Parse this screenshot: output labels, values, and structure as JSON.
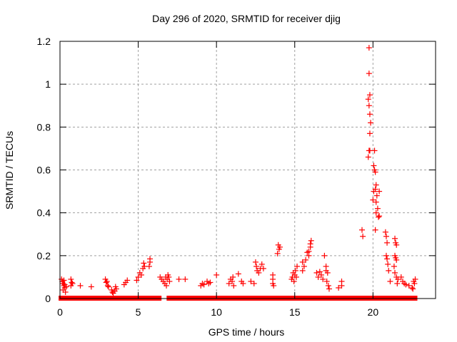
{
  "chart_data": {
    "type": "scatter",
    "title": "Day 296 of 2020, SRMTID for receiver djig",
    "xlabel": "GPS time / hours",
    "ylabel": "SRMTID / TECUs",
    "xlim": [
      0,
      24
    ],
    "ylim": [
      0,
      1.2
    ],
    "xticks": [
      0,
      5,
      10,
      15,
      20
    ],
    "xtick_labels": [
      "0",
      "5",
      "10",
      "15",
      "20"
    ],
    "yticks": [
      0,
      0.2,
      0.4,
      0.6,
      0.8,
      1.0,
      1.2
    ],
    "ytick_labels": [
      "0",
      "0.2",
      "0.4",
      "0.6",
      "0.8",
      "1",
      "1.2"
    ],
    "grid": true,
    "marker": "plus",
    "series": [
      {
        "name": "SRMTID",
        "color": "#ff0000",
        "points": [
          [
            0.1,
            0.09
          ],
          [
            0.15,
            0.08
          ],
          [
            0.2,
            0.07
          ],
          [
            0.25,
            0.06
          ],
          [
            0.3,
            0.05
          ],
          [
            0.2,
            0.04
          ],
          [
            0.35,
            0.03
          ],
          [
            0.3,
            0.065
          ],
          [
            0.4,
            0.055
          ],
          [
            0.25,
            0.085
          ],
          [
            0.7,
            0.09
          ],
          [
            0.75,
            0.075
          ],
          [
            0.7,
            0.06
          ],
          [
            0.8,
            0.07
          ],
          [
            1.3,
            0.06
          ],
          [
            2.0,
            0.055
          ],
          [
            2.9,
            0.09
          ],
          [
            3.0,
            0.08
          ],
          [
            2.95,
            0.075
          ],
          [
            3.05,
            0.06
          ],
          [
            3.1,
            0.055
          ],
          [
            3.3,
            0.04
          ],
          [
            3.35,
            0.03
          ],
          [
            3.4,
            0.025
          ],
          [
            3.5,
            0.035
          ],
          [
            3.6,
            0.045
          ],
          [
            3.55,
            0.055
          ],
          [
            4.1,
            0.065
          ],
          [
            4.2,
            0.075
          ],
          [
            4.3,
            0.085
          ],
          [
            4.9,
            0.085
          ],
          [
            5.0,
            0.1
          ],
          [
            5.1,
            0.12
          ],
          [
            5.2,
            0.11
          ],
          [
            5.3,
            0.14
          ],
          [
            5.35,
            0.165
          ],
          [
            5.4,
            0.15
          ],
          [
            5.7,
            0.15
          ],
          [
            5.75,
            0.17
          ],
          [
            5.75,
            0.185
          ],
          [
            6.4,
            0.1
          ],
          [
            6.5,
            0.09
          ],
          [
            6.6,
            0.08
          ],
          [
            6.7,
            0.07
          ],
          [
            6.75,
            0.1
          ],
          [
            6.8,
            0.06
          ],
          [
            6.85,
            0.09
          ],
          [
            6.9,
            0.11
          ],
          [
            7.0,
            0.08
          ],
          [
            6.95,
            0.1
          ],
          [
            7.6,
            0.09
          ],
          [
            8.0,
            0.09
          ],
          [
            9.0,
            0.06
          ],
          [
            9.1,
            0.07
          ],
          [
            9.2,
            0.065
          ],
          [
            9.4,
            0.08
          ],
          [
            9.5,
            0.07
          ],
          [
            9.6,
            0.075
          ],
          [
            10.0,
            0.11
          ],
          [
            10.8,
            0.07
          ],
          [
            10.9,
            0.09
          ],
          [
            11.0,
            0.08
          ],
          [
            11.05,
            0.1
          ],
          [
            11.1,
            0.06
          ],
          [
            11.4,
            0.115
          ],
          [
            11.6,
            0.08
          ],
          [
            11.7,
            0.07
          ],
          [
            12.2,
            0.08
          ],
          [
            12.4,
            0.07
          ],
          [
            12.5,
            0.17
          ],
          [
            12.55,
            0.15
          ],
          [
            12.6,
            0.13
          ],
          [
            12.7,
            0.12
          ],
          [
            12.8,
            0.14
          ],
          [
            12.9,
            0.16
          ],
          [
            13.0,
            0.14
          ],
          [
            13.6,
            0.11
          ],
          [
            13.6,
            0.09
          ],
          [
            13.6,
            0.07
          ],
          [
            13.65,
            0.06
          ],
          [
            13.9,
            0.21
          ],
          [
            13.95,
            0.25
          ],
          [
            14.0,
            0.23
          ],
          [
            14.05,
            0.24
          ],
          [
            14.8,
            0.09
          ],
          [
            14.85,
            0.1
          ],
          [
            14.9,
            0.12
          ],
          [
            14.95,
            0.08
          ],
          [
            15.0,
            0.11
          ],
          [
            15.05,
            0.13
          ],
          [
            15.1,
            0.1
          ],
          [
            15.15,
            0.15
          ],
          [
            15.5,
            0.17
          ],
          [
            15.5,
            0.13
          ],
          [
            15.6,
            0.15
          ],
          [
            15.7,
            0.18
          ],
          [
            15.8,
            0.215
          ],
          [
            15.9,
            0.22
          ],
          [
            16.0,
            0.24
          ],
          [
            16.05,
            0.27
          ],
          [
            16.0,
            0.255
          ],
          [
            15.9,
            0.2
          ],
          [
            16.4,
            0.12
          ],
          [
            16.5,
            0.1
          ],
          [
            16.6,
            0.125
          ],
          [
            16.7,
            0.11
          ],
          [
            16.8,
            0.09
          ],
          [
            16.9,
            0.2
          ],
          [
            17.0,
            0.15
          ],
          [
            17.0,
            0.13
          ],
          [
            17.05,
            0.08
          ],
          [
            17.1,
            0.12
          ],
          [
            17.15,
            0.06
          ],
          [
            17.2,
            0.045
          ],
          [
            17.8,
            0.05
          ],
          [
            18.0,
            0.06
          ],
          [
            18.0,
            0.08
          ],
          [
            19.3,
            0.32
          ],
          [
            19.35,
            0.29
          ],
          [
            19.75,
            1.17
          ],
          [
            19.75,
            1.05
          ],
          [
            19.8,
            0.95
          ],
          [
            19.7,
            0.93
          ],
          [
            19.75,
            0.9
          ],
          [
            19.8,
            0.86
          ],
          [
            19.85,
            0.82
          ],
          [
            19.8,
            0.77
          ],
          [
            19.75,
            0.69
          ],
          [
            19.7,
            0.66
          ],
          [
            19.8,
            0.69
          ],
          [
            20.1,
            0.69
          ],
          [
            20.05,
            0.62
          ],
          [
            20.1,
            0.6
          ],
          [
            20.15,
            0.59
          ],
          [
            20.2,
            0.53
          ],
          [
            20.15,
            0.51
          ],
          [
            20.05,
            0.5
          ],
          [
            20.25,
            0.48
          ],
          [
            20.0,
            0.46
          ],
          [
            20.2,
            0.45
          ],
          [
            20.4,
            0.5
          ],
          [
            20.3,
            0.42
          ],
          [
            20.35,
            0.38
          ],
          [
            20.4,
            0.385
          ],
          [
            20.2,
            0.4
          ],
          [
            20.15,
            0.32
          ],
          [
            20.8,
            0.31
          ],
          [
            20.85,
            0.29
          ],
          [
            20.9,
            0.26
          ],
          [
            20.85,
            0.2
          ],
          [
            20.9,
            0.185
          ],
          [
            20.95,
            0.16
          ],
          [
            21.0,
            0.13
          ],
          [
            21.1,
            0.08
          ],
          [
            21.4,
            0.28
          ],
          [
            21.45,
            0.26
          ],
          [
            21.5,
            0.25
          ],
          [
            21.4,
            0.2
          ],
          [
            21.45,
            0.19
          ],
          [
            21.5,
            0.18
          ],
          [
            21.35,
            0.15
          ],
          [
            21.4,
            0.12
          ],
          [
            21.5,
            0.1
          ],
          [
            21.6,
            0.09
          ],
          [
            21.55,
            0.07
          ],
          [
            21.8,
            0.1
          ],
          [
            21.9,
            0.08
          ],
          [
            22.0,
            0.07
          ],
          [
            22.1,
            0.065
          ],
          [
            22.3,
            0.06
          ],
          [
            22.5,
            0.05
          ],
          [
            22.6,
            0.08
          ],
          [
            22.65,
            0.07
          ],
          [
            22.7,
            0.09
          ],
          [
            22.55,
            0.045
          ]
        ],
        "zero_intervals_hours": [
          [
            0.05,
            0.3
          ],
          [
            0.45,
            1.05
          ],
          [
            1.15,
            4.25
          ],
          [
            4.3,
            4.95
          ],
          [
            5.05,
            6.35
          ],
          [
            6.95,
            14.8
          ],
          [
            15.0,
            19.9
          ],
          [
            20.0,
            20.1
          ],
          [
            20.3,
            20.6
          ],
          [
            20.7,
            21.2
          ],
          [
            21.4,
            22.7
          ]
        ]
      }
    ]
  }
}
